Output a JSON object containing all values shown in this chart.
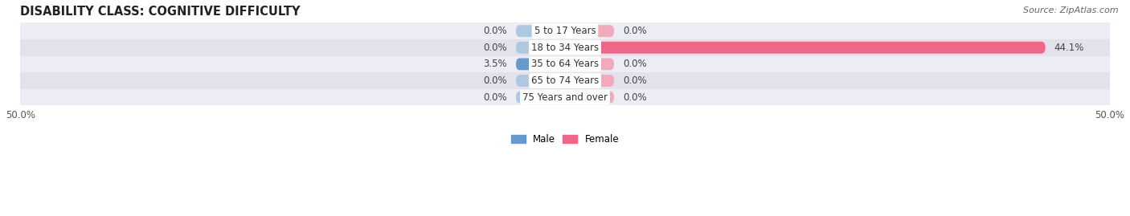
{
  "title": "DISABILITY CLASS: COGNITIVE DIFFICULTY",
  "source": "Source: ZipAtlas.com",
  "categories": [
    "5 to 17 Years",
    "18 to 34 Years",
    "35 to 64 Years",
    "65 to 74 Years",
    "75 Years and over"
  ],
  "male_values": [
    0.0,
    0.0,
    3.5,
    0.0,
    0.0
  ],
  "female_values": [
    0.0,
    44.1,
    0.0,
    0.0,
    0.0
  ],
  "male_color_strong": "#6699cc",
  "male_color_light": "#aec8e0",
  "female_color_strong": "#ee6688",
  "female_color_light": "#f0aabb",
  "row_colors": [
    "#ececf4",
    "#e2e2ec"
  ],
  "bg_color": "#ffffff",
  "xlim": 50.0,
  "title_fontsize": 10.5,
  "label_fontsize": 8.5,
  "value_fontsize": 8.5,
  "tick_fontsize": 8.5,
  "source_fontsize": 8,
  "bar_height": 0.72,
  "min_bar_width": 4.5
}
